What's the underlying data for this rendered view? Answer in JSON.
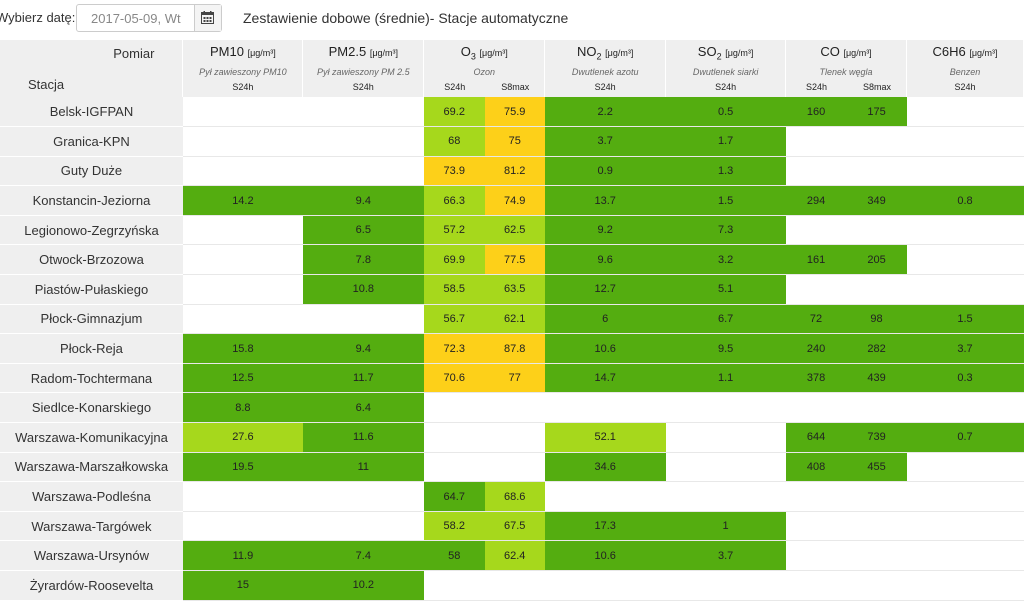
{
  "date_picker": {
    "label": "Wybierz datę:",
    "value": "2017-05-09, Wt"
  },
  "page_title": "Zestawienie dobowe (średnie)- Stacje automatyczne",
  "header": {
    "pomiar": "Pomiar",
    "stacja": "Stacja",
    "pollutants": [
      {
        "name": "PM10",
        "sub": "",
        "unit": "[μg/m³]",
        "desc": "Pył zawieszony PM10",
        "avg1": "S24h",
        "avg2": ""
      },
      {
        "name": "PM2.5",
        "sub": "",
        "unit": "[μg/m³]",
        "desc": "Pył zawieszony PM 2.5",
        "avg1": "S24h",
        "avg2": ""
      },
      {
        "name": "O",
        "sub": "3",
        "unit": "[μg/m³]",
        "desc": "Ozon",
        "avg1": "S24h",
        "avg2": "S8max"
      },
      {
        "name": "NO",
        "sub": "2",
        "unit": "[μg/m³]",
        "desc": "Dwutlenek azotu",
        "avg1": "S24h",
        "avg2": ""
      },
      {
        "name": "SO",
        "sub": "2",
        "unit": "[μg/m³]",
        "desc": "Dwutlenek siarki",
        "avg1": "S24h",
        "avg2": ""
      },
      {
        "name": "CO",
        "sub": "",
        "unit": "[μg/m³]",
        "desc": "Tlenek węgla",
        "avg1": "S24h",
        "avg2": "S8max"
      },
      {
        "name": "C6H6",
        "sub": "",
        "unit": "[μg/m³]",
        "desc": "Benzen",
        "avg1": "S24h",
        "avg2": ""
      }
    ]
  },
  "colors": {
    "good": "#54ad10",
    "very_good": "#a6d81c",
    "moderate": "#fdd019"
  },
  "columns": [
    "pm10",
    "pm25",
    "o3_24",
    "o3_8",
    "no2",
    "so2",
    "co_24",
    "co_8",
    "c6h6"
  ],
  "rows": [
    {
      "station": "Belsk-IGFPAN",
      "values": [
        "",
        "",
        "69.2",
        "75.9",
        "2.2",
        "0.5",
        "160",
        "175",
        ""
      ],
      "levels": [
        "",
        "",
        "lg",
        "y",
        "g",
        "g",
        "g",
        "g",
        ""
      ]
    },
    {
      "station": "Granica-KPN",
      "values": [
        "",
        "",
        "68",
        "75",
        "3.7",
        "1.7",
        "",
        "",
        ""
      ],
      "levels": [
        "",
        "",
        "lg",
        "y",
        "g",
        "g",
        "",
        "",
        ""
      ]
    },
    {
      "station": "Guty Duże",
      "values": [
        "",
        "",
        "73.9",
        "81.2",
        "0.9",
        "1.3",
        "",
        "",
        ""
      ],
      "levels": [
        "",
        "",
        "y",
        "y",
        "g",
        "g",
        "",
        "",
        ""
      ]
    },
    {
      "station": "Konstancin-Jeziorna",
      "values": [
        "14.2",
        "9.4",
        "66.3",
        "74.9",
        "13.7",
        "1.5",
        "294",
        "349",
        "0.8"
      ],
      "levels": [
        "g",
        "g",
        "lg",
        "y",
        "g",
        "g",
        "g",
        "g",
        "g"
      ]
    },
    {
      "station": "Legionowo-Zegrzyńska",
      "values": [
        "",
        "6.5",
        "57.2",
        "62.5",
        "9.2",
        "7.3",
        "",
        "",
        ""
      ],
      "levels": [
        "",
        "g",
        "lg",
        "lg",
        "g",
        "g",
        "",
        "",
        ""
      ]
    },
    {
      "station": "Otwock-Brzozowa",
      "values": [
        "",
        "7.8",
        "69.9",
        "77.5",
        "9.6",
        "3.2",
        "161",
        "205",
        ""
      ],
      "levels": [
        "",
        "g",
        "lg",
        "y",
        "g",
        "g",
        "g",
        "g",
        ""
      ]
    },
    {
      "station": "Piastów-Pułaskiego",
      "values": [
        "",
        "10.8",
        "58.5",
        "63.5",
        "12.7",
        "5.1",
        "",
        "",
        ""
      ],
      "levels": [
        "",
        "g",
        "lg",
        "lg",
        "g",
        "g",
        "",
        "",
        ""
      ]
    },
    {
      "station": "Płock-Gimnazjum",
      "values": [
        "",
        "",
        "56.7",
        "62.1",
        "6",
        "6.7",
        "72",
        "98",
        "1.5"
      ],
      "levels": [
        "",
        "",
        "lg",
        "lg",
        "g",
        "g",
        "g",
        "g",
        "g"
      ]
    },
    {
      "station": "Płock-Reja",
      "values": [
        "15.8",
        "9.4",
        "72.3",
        "87.8",
        "10.6",
        "9.5",
        "240",
        "282",
        "3.7"
      ],
      "levels": [
        "g",
        "g",
        "y",
        "y",
        "g",
        "g",
        "g",
        "g",
        "g"
      ]
    },
    {
      "station": "Radom-Tochtermana",
      "values": [
        "12.5",
        "11.7",
        "70.6",
        "77",
        "14.7",
        "1.1",
        "378",
        "439",
        "0.3"
      ],
      "levels": [
        "g",
        "g",
        "y",
        "y",
        "g",
        "g",
        "g",
        "g",
        "g"
      ]
    },
    {
      "station": "Siedlce-Konarskiego",
      "values": [
        "8.8",
        "6.4",
        "",
        "",
        "",
        "",
        "",
        "",
        ""
      ],
      "levels": [
        "g",
        "g",
        "",
        "",
        "",
        "",
        "",
        "",
        ""
      ]
    },
    {
      "station": "Warszawa-Komunikacyjna",
      "values": [
        "27.6",
        "11.6",
        "",
        "",
        "52.1",
        "",
        "644",
        "739",
        "0.7"
      ],
      "levels": [
        "lg",
        "g",
        "",
        "",
        "lg",
        "",
        "g",
        "g",
        "g"
      ]
    },
    {
      "station": "Warszawa-Marszałkowska",
      "values": [
        "19.5",
        "11",
        "",
        "",
        "34.6",
        "",
        "408",
        "455",
        ""
      ],
      "levels": [
        "g",
        "g",
        "",
        "",
        "g",
        "",
        "g",
        "g",
        ""
      ]
    },
    {
      "station": "Warszawa-Podleśna",
      "values": [
        "",
        "",
        "64.7",
        "68.6",
        "",
        "",
        "",
        "",
        ""
      ],
      "levels": [
        "",
        "",
        "g",
        "lg",
        "",
        "",
        "",
        "",
        ""
      ]
    },
    {
      "station": "Warszawa-Targówek",
      "values": [
        "",
        "",
        "58.2",
        "67.5",
        "17.3",
        "1",
        "",
        "",
        ""
      ],
      "levels": [
        "",
        "",
        "lg",
        "lg",
        "g",
        "g",
        "",
        "",
        ""
      ]
    },
    {
      "station": "Warszawa-Ursynów",
      "values": [
        "11.9",
        "7.4",
        "58",
        "62.4",
        "10.6",
        "3.7",
        "",
        "",
        ""
      ],
      "levels": [
        "g",
        "g",
        "g",
        "lg",
        "g",
        "g",
        "",
        "",
        ""
      ]
    },
    {
      "station": "Żyrardów-Roosevelta",
      "values": [
        "15",
        "10.2",
        "",
        "",
        "",
        "",
        "",
        "",
        ""
      ],
      "levels": [
        "g",
        "g",
        "",
        "",
        "",
        "",
        "",
        "",
        ""
      ]
    }
  ]
}
